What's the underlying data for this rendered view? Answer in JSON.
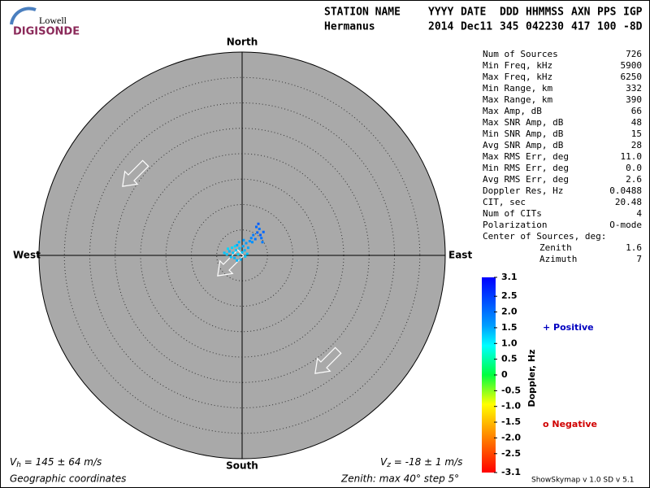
{
  "header": {
    "org": "Lowell",
    "product": "DIGISONDE"
  },
  "station": {
    "columns": [
      "STATION NAME",
      "YYYY",
      "DATE",
      "DDD",
      "HHMMSS",
      "AXN",
      "PPS",
      "IGP"
    ],
    "values": [
      "Hermanus",
      "2014",
      "Dec11",
      "345",
      "042230",
      "417",
      "100",
      "-8D"
    ]
  },
  "stats": {
    "rows": [
      [
        "Num of Sources",
        "726"
      ],
      [
        "Min Freq, kHz",
        "5900"
      ],
      [
        "Max Freq, kHz",
        "6250"
      ],
      [
        "Min Range, km",
        "332"
      ],
      [
        "Max Range, km",
        "390"
      ],
      [
        "Max Amp, dB",
        "66"
      ],
      [
        "Max SNR Amp, dB",
        "48"
      ],
      [
        "Min SNR Amp, dB",
        "15"
      ],
      [
        "Avg SNR Amp, dB",
        "28"
      ],
      [
        "Max RMS Err, deg",
        "11.0"
      ],
      [
        "Min RMS Err, deg",
        "0.0"
      ],
      [
        "Avg RMS Err, deg",
        "2.6"
      ],
      [
        "Doppler Res, Hz",
        "0.0488"
      ],
      [
        "CIT, sec",
        "20.48"
      ],
      [
        "Num of CITs",
        "4"
      ],
      [
        "Polarization",
        "O-mode"
      ]
    ],
    "center_title": "Center of Sources, deg:",
    "center_rows": [
      [
        "Zenith",
        "1.6"
      ],
      [
        "Azimuth",
        "7"
      ]
    ]
  },
  "chart_data": {
    "type": "scatter",
    "north": "North",
    "south": "South",
    "east": "East",
    "west": "West",
    "rlim": [
      0,
      40
    ],
    "rticks": [
      5,
      10,
      15,
      20,
      25,
      30,
      35
    ],
    "sources": {
      "x": [
        -3,
        -2.5,
        -2,
        -1.8,
        -1.5,
        -1.2,
        -1,
        -0.8,
        -0.5,
        -0.3,
        0,
        0.2,
        0.5,
        0.8,
        1,
        1.2,
        1.5,
        -2.2,
        -1.4,
        -0.6,
        0.3,
        -3.5,
        -2.8,
        -1.0,
        0.6,
        1.8,
        2.2,
        2.6,
        3.0,
        3.4,
        3.6,
        2.8,
        3.2,
        3.8,
        4.2,
        2.0,
        4.0
      ],
      "y": [
        0.2,
        0.8,
        1.5,
        0.5,
        -0.5,
        1.0,
        2,
        0.2,
        1.4,
        -0.8,
        0.6,
        1.8,
        1.0,
        2.4,
        0.3,
        1.5,
        2.8,
        -0.3,
        1.8,
        2.6,
        3.0,
        0.5,
        1.3,
        -1.0,
        -0.2,
        3.4,
        4.0,
        3.2,
        4.5,
        5.2,
        4.0,
        5.6,
        6.2,
        3.4,
        4.6,
        2.6,
        2.6
      ],
      "doppler": [
        1.3,
        1.4,
        1.2,
        1.3,
        1.4,
        1.3,
        1.5,
        1.2,
        1.3,
        1.4,
        1.3,
        1.5,
        1.4,
        1.6,
        1.3,
        1.5,
        1.7,
        1.3,
        1.2,
        1.4,
        1.6,
        1.3,
        1.2,
        1.4,
        1.3,
        1.8,
        1.9,
        2.0,
        2.1,
        2.0,
        2.2,
        2.1,
        2.2,
        2.0,
        2.1,
        1.7,
        1.9
      ]
    },
    "colorbar": {
      "label": "Doppler, Hz",
      "lim": [
        -3.1,
        3.1
      ],
      "ticks": [
        3.1,
        2.5,
        {
          "value": 2,
          "label": "2.0"
        },
        1.5,
        {
          "value": 1,
          "label": "1.0"
        },
        0.5,
        0,
        -0.5,
        {
          "value": -1,
          "label": "-1.0"
        },
        -1.5,
        {
          "value": -2,
          "label": "-2.0"
        },
        -2.5,
        -3.1
      ]
    },
    "legend": {
      "positive": "+ Positive",
      "negative": "o Negative"
    }
  },
  "footer": {
    "vh_symbol": "V",
    "vh_sub": "h",
    "vh_text": " = 145 ± 64 m/s",
    "vz_symbol": "V",
    "vz_sub": "z",
    "vz_text": " = -18 ± 1 m/s",
    "coords": "Geographic coordinates",
    "zenith": "Zenith: max 40°  step 5°",
    "version": "ShowSkymap v 1.0  SD v 5.1"
  }
}
